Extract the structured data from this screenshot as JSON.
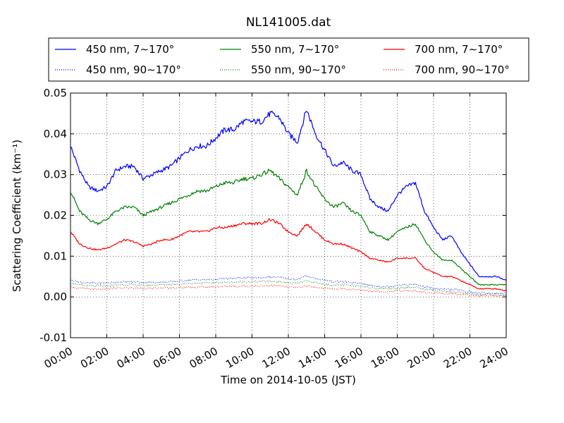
{
  "chart_data": {
    "type": "line",
    "title": "NL141005.dat",
    "xlabel": "Time on 2014-10-05 (JST)",
    "ylabel": "Scattering Coefficient (km⁻¹)",
    "xlim": [
      0,
      24
    ],
    "ylim": [
      -0.01,
      0.05
    ],
    "grid": true,
    "legend_position": "top",
    "x_tick_labels": [
      "00:00",
      "02:00",
      "04:00",
      "06:00",
      "08:00",
      "10:00",
      "12:00",
      "14:00",
      "16:00",
      "18:00",
      "20:00",
      "22:00",
      "24:00"
    ],
    "y_tick_labels": [
      "-0.01",
      "0.00",
      "0.01",
      "0.02",
      "0.03",
      "0.04",
      "0.05"
    ],
    "x": [
      0,
      0.5,
      1,
      1.5,
      2,
      2.5,
      3,
      3.5,
      4,
      4.5,
      5,
      5.5,
      6,
      6.5,
      7,
      7.5,
      8,
      8.5,
      9,
      9.5,
      10,
      10.5,
      11,
      11.5,
      12,
      12.5,
      13,
      13.5,
      14,
      14.5,
      15,
      15.5,
      16,
      16.5,
      17,
      17.5,
      18,
      18.5,
      19,
      19.5,
      20,
      20.5,
      21,
      21.5,
      22,
      22.5,
      23,
      23.5,
      24
    ],
    "series": [
      {
        "name": "450 nm, 7∼170°",
        "color": "#0000ff",
        "style": "solid",
        "values": [
          0.037,
          0.031,
          0.027,
          0.026,
          0.027,
          0.031,
          0.032,
          0.032,
          0.029,
          0.03,
          0.031,
          0.032,
          0.034,
          0.036,
          0.037,
          0.037,
          0.039,
          0.041,
          0.041,
          0.043,
          0.043,
          0.043,
          0.045,
          0.044,
          0.04,
          0.038,
          0.046,
          0.04,
          0.036,
          0.032,
          0.033,
          0.031,
          0.03,
          0.024,
          0.022,
          0.021,
          0.025,
          0.027,
          0.028,
          0.021,
          0.017,
          0.014,
          0.015,
          0.011,
          0.008,
          0.005,
          0.005,
          0.005,
          0.004
        ]
      },
      {
        "name": "550 nm, 7∼170°",
        "color": "#008000",
        "style": "solid",
        "values": [
          0.026,
          0.021,
          0.019,
          0.018,
          0.019,
          0.021,
          0.022,
          0.022,
          0.02,
          0.021,
          0.022,
          0.023,
          0.024,
          0.025,
          0.026,
          0.026,
          0.027,
          0.028,
          0.028,
          0.029,
          0.029,
          0.03,
          0.031,
          0.029,
          0.027,
          0.025,
          0.031,
          0.027,
          0.024,
          0.022,
          0.023,
          0.021,
          0.02,
          0.016,
          0.015,
          0.014,
          0.016,
          0.017,
          0.018,
          0.014,
          0.011,
          0.009,
          0.009,
          0.007,
          0.005,
          0.003,
          0.003,
          0.003,
          0.003
        ]
      },
      {
        "name": "700 nm, 7∼170°",
        "color": "#ff0000",
        "style": "solid",
        "values": [
          0.016,
          0.013,
          0.012,
          0.0115,
          0.012,
          0.013,
          0.014,
          0.0135,
          0.0125,
          0.013,
          0.014,
          0.014,
          0.015,
          0.016,
          0.016,
          0.016,
          0.017,
          0.017,
          0.0175,
          0.018,
          0.018,
          0.018,
          0.019,
          0.018,
          0.016,
          0.015,
          0.018,
          0.016,
          0.014,
          0.013,
          0.013,
          0.012,
          0.011,
          0.0095,
          0.009,
          0.0085,
          0.0095,
          0.0095,
          0.0095,
          0.007,
          0.006,
          0.005,
          0.005,
          0.004,
          0.003,
          0.002,
          0.002,
          0.002,
          0.0015
        ]
      },
      {
        "name": "450 nm, 90∼170°",
        "color": "#0000ff",
        "style": "dotted",
        "values": [
          0.0042,
          0.0036,
          0.0034,
          0.0033,
          0.0034,
          0.0036,
          0.0037,
          0.0037,
          0.0035,
          0.0036,
          0.0036,
          0.0037,
          0.0039,
          0.0041,
          0.0042,
          0.0042,
          0.0043,
          0.0045,
          0.0045,
          0.0047,
          0.0047,
          0.0047,
          0.0049,
          0.0048,
          0.0045,
          0.0043,
          0.0052,
          0.0045,
          0.0041,
          0.0037,
          0.0038,
          0.0035,
          0.0033,
          0.0028,
          0.0026,
          0.0025,
          0.0029,
          0.003,
          0.0031,
          0.0025,
          0.0021,
          0.0018,
          0.0019,
          0.0016,
          0.0012,
          0.0009,
          0.0009,
          0.0009,
          0.0008
        ]
      },
      {
        "name": "550 nm, 90∼170°",
        "color": "#008000",
        "style": "dotted",
        "values": [
          0.0035,
          0.0029,
          0.0027,
          0.0026,
          0.0027,
          0.0029,
          0.003,
          0.003,
          0.0028,
          0.0029,
          0.003,
          0.0031,
          0.0032,
          0.0033,
          0.0034,
          0.0034,
          0.0035,
          0.0036,
          0.0036,
          0.0037,
          0.0037,
          0.0038,
          0.0039,
          0.0037,
          0.0035,
          0.0033,
          0.0039,
          0.0035,
          0.0031,
          0.0029,
          0.003,
          0.0028,
          0.0027,
          0.0022,
          0.0021,
          0.002,
          0.0022,
          0.0023,
          0.0024,
          0.0019,
          0.0016,
          0.0013,
          0.0013,
          0.0011,
          0.0008,
          0.0006,
          0.0006,
          0.0006,
          0.0006
        ]
      },
      {
        "name": "700 nm, 90∼170°",
        "color": "#ff0000",
        "style": "dotted",
        "values": [
          0.0025,
          0.0021,
          0.002,
          0.0019,
          0.002,
          0.0021,
          0.0022,
          0.0022,
          0.0021,
          0.0021,
          0.0022,
          0.0022,
          0.0023,
          0.0024,
          0.0024,
          0.0024,
          0.0025,
          0.0026,
          0.0026,
          0.0027,
          0.0027,
          0.0027,
          0.0028,
          0.0027,
          0.0024,
          0.0023,
          0.0027,
          0.0024,
          0.0021,
          0.002,
          0.002,
          0.0018,
          0.0017,
          0.0015,
          0.0014,
          0.0013,
          0.0015,
          0.0015,
          0.0015,
          0.0011,
          0.0009,
          0.0008,
          0.0008,
          0.0006,
          0.0005,
          0.0003,
          0.0003,
          0.0003,
          0.0002
        ]
      }
    ]
  }
}
